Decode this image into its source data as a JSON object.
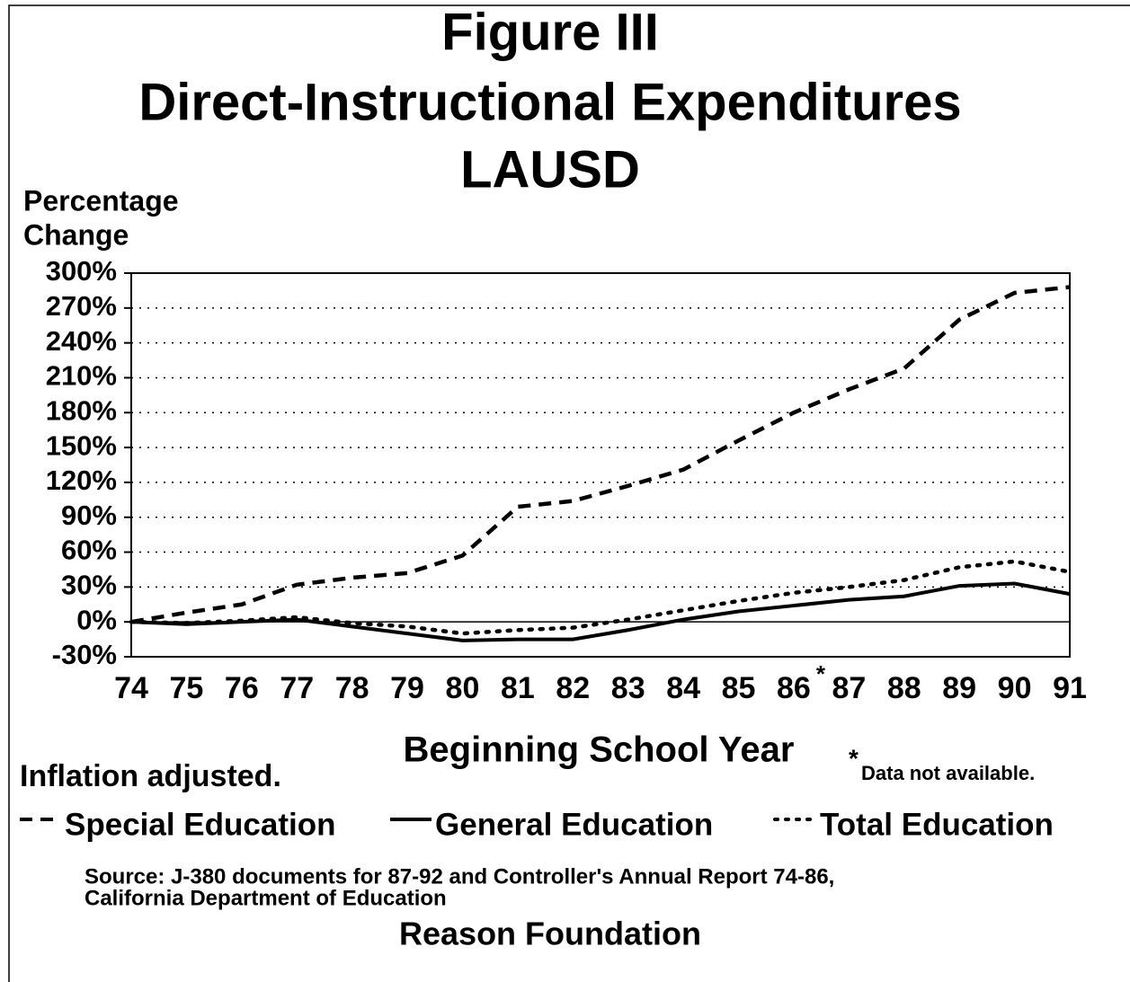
{
  "chart_data": {
    "type": "line",
    "title": [
      "Figure III",
      "Direct-Instructional Expenditures",
      "LAUSD"
    ],
    "y_label": [
      "Percentage",
      "Change"
    ],
    "x_label": "Beginning School Year",
    "annotations": {
      "note": "Inflation adjusted.",
      "marker": "*",
      "missing": "Data not available."
    },
    "source": [
      "Source: J-380 documents for 87-92 and Controller's Annual Report 74-86,",
      "California Department of Education"
    ],
    "credit": "Reason Foundation",
    "categories": [
      "74",
      "75",
      "76",
      "77",
      "78",
      "79",
      "80",
      "81",
      "82",
      "83",
      "84",
      "85",
      "86",
      "87",
      "88",
      "89",
      "90",
      "91"
    ],
    "marked_category": 12,
    "series": [
      {
        "name": "Special Education",
        "color": "#000000",
        "style": "dashed",
        "values": [
          0,
          8,
          15,
          32,
          38,
          42,
          57,
          99,
          104,
          117,
          131,
          156,
          180,
          200,
          218,
          260,
          283,
          288
        ]
      },
      {
        "name": "General Education",
        "color": "#000000",
        "style": "solid",
        "values": [
          0,
          -2,
          0,
          2,
          -4,
          -10,
          -16,
          -15,
          -15,
          -7,
          2,
          9,
          14,
          19,
          22,
          31,
          33,
          24
        ]
      },
      {
        "name": "Total Education",
        "color": "#000000",
        "style": "dotted",
        "values": [
          0,
          -1,
          1,
          4,
          -1,
          -4,
          -10,
          -7,
          -5,
          2,
          10,
          18,
          25,
          30,
          36,
          47,
          52,
          43
        ]
      }
    ],
    "ylim": [
      -30,
      300
    ],
    "yticks": [
      {
        "value": -30,
        "label": "-30%"
      },
      {
        "value": 0,
        "label": "0%"
      },
      {
        "value": 30,
        "label": "30%"
      },
      {
        "value": 60,
        "label": "60%"
      },
      {
        "value": 90,
        "label": "90%"
      },
      {
        "value": 120,
        "label": "120%"
      },
      {
        "value": 150,
        "label": "150%"
      },
      {
        "value": 180,
        "label": "180%"
      },
      {
        "value": 210,
        "label": "210%"
      },
      {
        "value": 240,
        "label": "240%"
      },
      {
        "value": 270,
        "label": "270%"
      },
      {
        "value": 300,
        "label": "300%"
      }
    ],
    "grid": true
  }
}
